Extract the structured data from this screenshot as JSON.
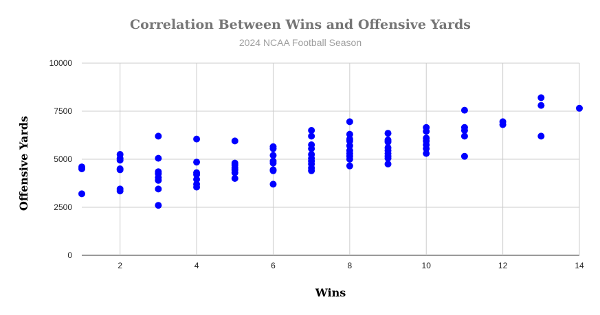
{
  "chart_data": {
    "type": "scatter",
    "title": "Correlation Between Wins and Offensive Yards",
    "subtitle": "2024 NCAA Football Season",
    "xlabel": "Wins",
    "ylabel": "Offensive Yards",
    "xlim": [
      1,
      14
    ],
    "ylim": [
      0,
      10000
    ],
    "xticks": [
      2,
      4,
      6,
      8,
      10,
      12,
      14
    ],
    "yticks": [
      0,
      2500,
      5000,
      7500,
      10000
    ],
    "grid": true,
    "point_color": "#0000ff",
    "points": [
      [
        1,
        4600
      ],
      [
        1,
        4500
      ],
      [
        1,
        3200
      ],
      [
        2,
        5250
      ],
      [
        2,
        5050
      ],
      [
        2,
        4950
      ],
      [
        2,
        4500
      ],
      [
        2,
        4450
      ],
      [
        2,
        3450
      ],
      [
        2,
        3350
      ],
      [
        3,
        6200
      ],
      [
        3,
        5050
      ],
      [
        3,
        4350
      ],
      [
        3,
        4250
      ],
      [
        3,
        4050
      ],
      [
        3,
        3900
      ],
      [
        3,
        3450
      ],
      [
        3,
        2600
      ],
      [
        4,
        6050
      ],
      [
        4,
        4850
      ],
      [
        4,
        4300
      ],
      [
        4,
        4200
      ],
      [
        4,
        3950
      ],
      [
        4,
        3700
      ],
      [
        4,
        3550
      ],
      [
        5,
        5950
      ],
      [
        5,
        4800
      ],
      [
        5,
        4700
      ],
      [
        5,
        4550
      ],
      [
        5,
        4450
      ],
      [
        5,
        4300
      ],
      [
        5,
        4000
      ],
      [
        6,
        5650
      ],
      [
        6,
        5550
      ],
      [
        6,
        5200
      ],
      [
        6,
        4900
      ],
      [
        6,
        4800
      ],
      [
        6,
        4450
      ],
      [
        6,
        4400
      ],
      [
        6,
        3700
      ],
      [
        7,
        6500
      ],
      [
        7,
        6200
      ],
      [
        7,
        5750
      ],
      [
        7,
        5550
      ],
      [
        7,
        5250
      ],
      [
        7,
        5050
      ],
      [
        7,
        4900
      ],
      [
        7,
        4750
      ],
      [
        7,
        4550
      ],
      [
        7,
        4400
      ],
      [
        8,
        6950
      ],
      [
        8,
        6300
      ],
      [
        8,
        6050
      ],
      [
        8,
        5950
      ],
      [
        8,
        5700
      ],
      [
        8,
        5450
      ],
      [
        8,
        5300
      ],
      [
        8,
        5150
      ],
      [
        8,
        5000
      ],
      [
        8,
        4650
      ],
      [
        9,
        6350
      ],
      [
        9,
        6000
      ],
      [
        9,
        5900
      ],
      [
        9,
        5600
      ],
      [
        9,
        5450
      ],
      [
        9,
        5300
      ],
      [
        9,
        5150
      ],
      [
        9,
        5050
      ],
      [
        9,
        4750
      ],
      [
        10,
        6650
      ],
      [
        10,
        6450
      ],
      [
        10,
        6100
      ],
      [
        10,
        5950
      ],
      [
        10,
        5750
      ],
      [
        10,
        5550
      ],
      [
        10,
        5300
      ],
      [
        11,
        7550
      ],
      [
        11,
        6650
      ],
      [
        11,
        6500
      ],
      [
        11,
        6200
      ],
      [
        11,
        5150
      ],
      [
        12,
        6950
      ],
      [
        12,
        6800
      ],
      [
        13,
        8200
      ],
      [
        13,
        7800
      ],
      [
        13,
        6200
      ],
      [
        14,
        7650
      ]
    ]
  }
}
